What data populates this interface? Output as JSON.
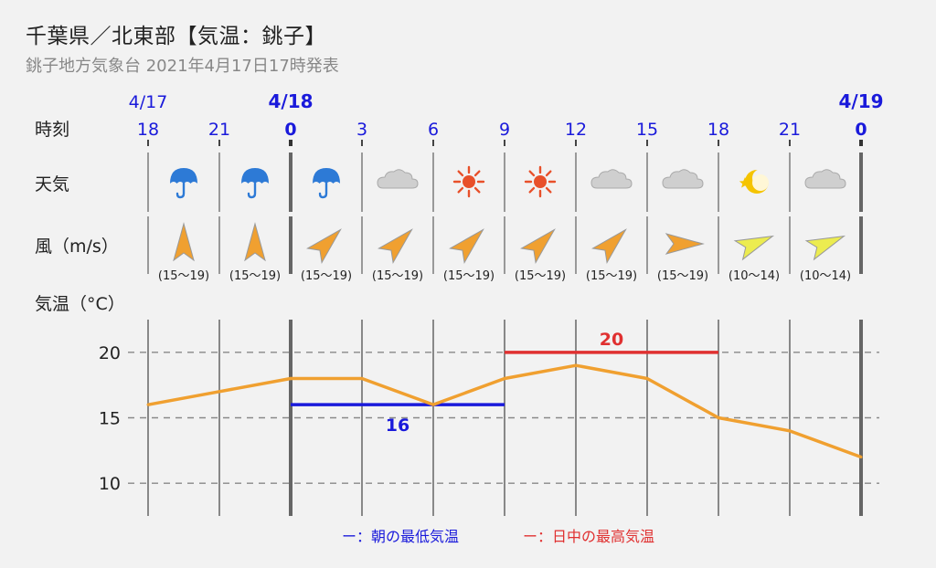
{
  "header": {
    "title": "千葉県／北東部【気温：銚子】",
    "subtitle": "銚子地方気象台 2021年4月17日17時発表"
  },
  "row_labels": {
    "time": "時刻",
    "weather": "天気",
    "wind": "風（m/s）",
    "temperature": "気温（°C）"
  },
  "colors": {
    "blue": "#1a1adb",
    "red": "#e03030",
    "line": "#f0a030",
    "arrow_orange": "#f0a030",
    "arrow_yellow": "#ecec50",
    "grid": "#888888"
  },
  "timeline": {
    "hours": [
      "18",
      "21",
      "0",
      "3",
      "6",
      "9",
      "12",
      "15",
      "18",
      "21",
      "0"
    ],
    "bold_hours": [
      false,
      false,
      true,
      false,
      false,
      false,
      false,
      false,
      false,
      false,
      true
    ],
    "dates": [
      {
        "index": 0,
        "label": "4/17",
        "bold": false
      },
      {
        "index": 2,
        "label": "4/18",
        "bold": true
      },
      {
        "index": 10,
        "label": "4/19",
        "bold": true
      }
    ]
  },
  "weather": [
    "umbrella-icon",
    "umbrella-icon",
    "umbrella-icon",
    "cloud-icon",
    "sun-icon",
    "sun-icon",
    "cloud-icon",
    "cloud-icon",
    "moon-star-icon",
    "cloud-icon"
  ],
  "wind": [
    {
      "dir": "S",
      "speed": "(15〜19)",
      "color": "orange"
    },
    {
      "dir": "S",
      "speed": "(15〜19)",
      "color": "orange"
    },
    {
      "dir": "SW",
      "speed": "(15〜19)",
      "color": "orange"
    },
    {
      "dir": "SW",
      "speed": "(15〜19)",
      "color": "orange"
    },
    {
      "dir": "SW",
      "speed": "(15〜19)",
      "color": "orange"
    },
    {
      "dir": "SW",
      "speed": "(15〜19)",
      "color": "orange"
    },
    {
      "dir": "SW",
      "speed": "(15〜19)",
      "color": "orange"
    },
    {
      "dir": "W",
      "speed": "(15〜19)",
      "color": "orange"
    },
    {
      "dir": "WSW",
      "speed": "(10〜14)",
      "color": "yellow"
    },
    {
      "dir": "WSW",
      "speed": "(10〜14)",
      "color": "yellow"
    }
  ],
  "chart_data": {
    "type": "line",
    "ylabel": "気温（°C）",
    "ylim": [
      7.5,
      22.5
    ],
    "yticks": [
      10,
      15,
      20
    ],
    "grid": true,
    "x": [
      "18",
      "21",
      "0",
      "3",
      "6",
      "9",
      "12",
      "15",
      "18",
      "21",
      "0"
    ],
    "series": [
      {
        "values": [
          16,
          17,
          18,
          18,
          16,
          18,
          19,
          18,
          15,
          14,
          12
        ]
      }
    ],
    "min_temp": {
      "value": 16,
      "label": "16",
      "from_index": 2,
      "to_index": 5
    },
    "max_temp": {
      "value": 20,
      "label": "20",
      "from_index": 5,
      "to_index": 8
    }
  },
  "legend": {
    "min_label": "ー：朝の最低気温",
    "max_label": "ー：日中の最高気温"
  }
}
